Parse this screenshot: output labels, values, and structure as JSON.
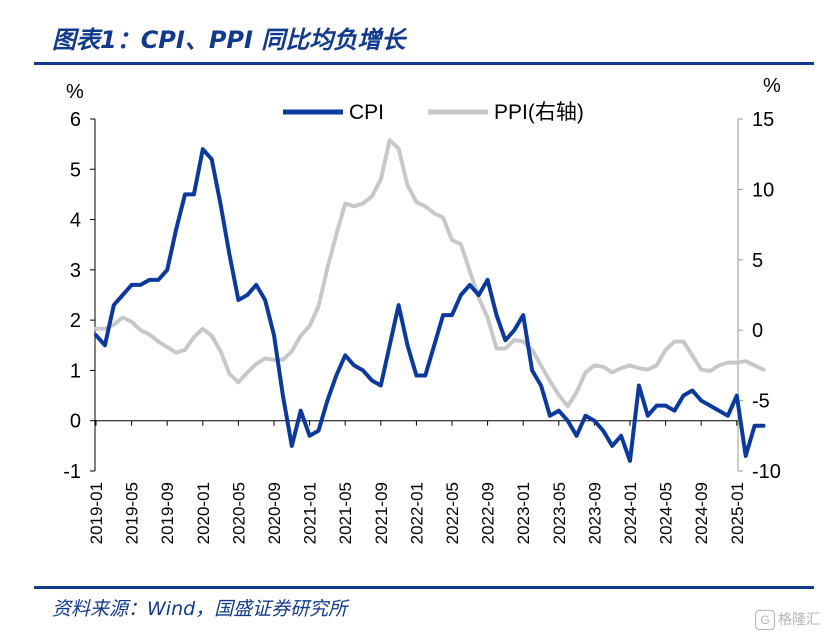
{
  "header": {
    "title": "图表1：CPI、PPI 同比均负增长"
  },
  "footer": {
    "source": "资料来源：Wind，国盛证券研究所",
    "watermark": "格隆汇",
    "watermark_mark": "G"
  },
  "colors": {
    "accent": "#123a8c",
    "cpi": "#0b3a9c",
    "ppi": "#c8c8c8"
  },
  "chart_data": {
    "type": "line",
    "title": "图表1：CPI、PPI 同比均负增长",
    "left_unit": "%",
    "right_unit": "%",
    "y_left": {
      "min": -1,
      "max": 6,
      "ticks": [
        "-1",
        "0",
        "1",
        "2",
        "3",
        "4",
        "5",
        "6"
      ]
    },
    "y_right": {
      "min": -10,
      "max": 15,
      "ticks": [
        "-10",
        "-5",
        "0",
        "5",
        "10",
        "15"
      ]
    },
    "x_tick_labels": [
      "2019-01",
      "2019-05",
      "2019-09",
      "2020-01",
      "2020-05",
      "2020-09",
      "2021-01",
      "2021-05",
      "2021-09",
      "2022-01",
      "2022-05",
      "2022-09",
      "2023-01",
      "2023-05",
      "2023-09",
      "2024-01",
      "2024-05",
      "2024-09",
      "2025-01"
    ],
    "legend": {
      "position": "top-center",
      "entries": [
        "CPI",
        "PPI(右轴)"
      ]
    },
    "grid": false,
    "series": [
      {
        "name": "CPI",
        "axis": "left",
        "values": [
          1.7,
          1.5,
          2.3,
          2.5,
          2.7,
          2.7,
          2.8,
          2.8,
          3.0,
          3.8,
          4.5,
          4.5,
          5.4,
          5.2,
          4.3,
          3.3,
          2.4,
          2.5,
          2.7,
          2.4,
          1.7,
          0.5,
          -0.5,
          0.2,
          -0.3,
          -0.2,
          0.4,
          0.9,
          1.3,
          1.1,
          1.0,
          0.8,
          0.7,
          1.5,
          2.3,
          1.5,
          0.9,
          0.9,
          1.5,
          2.1,
          2.1,
          2.5,
          2.7,
          2.5,
          2.8,
          2.1,
          1.6,
          1.8,
          2.1,
          1.0,
          0.7,
          0.1,
          0.2,
          0.0,
          -0.3,
          0.1,
          0.0,
          -0.2,
          -0.5,
          -0.3,
          -0.8,
          0.7,
          0.1,
          0.3,
          0.3,
          0.2,
          0.5,
          0.6,
          0.4,
          0.3,
          0.2,
          0.1,
          0.5,
          -0.7,
          -0.1,
          -0.1
        ],
        "first_month": "2019-01"
      },
      {
        "name": "PPI(右轴)",
        "axis": "right",
        "values": [
          0.1,
          0.1,
          0.4,
          0.9,
          0.6,
          0.0,
          -0.3,
          -0.8,
          -1.2,
          -1.6,
          -1.4,
          -0.5,
          0.1,
          -0.4,
          -1.5,
          -3.1,
          -3.7,
          -3.0,
          -2.4,
          -2.0,
          -2.1,
          -2.1,
          -1.5,
          -0.4,
          0.3,
          1.7,
          4.4,
          6.8,
          9.0,
          8.8,
          9.0,
          9.5,
          10.7,
          13.5,
          12.9,
          10.3,
          9.1,
          8.8,
          8.3,
          8.0,
          6.4,
          6.1,
          4.2,
          2.3,
          0.9,
          -1.3,
          -1.3,
          -0.7,
          -0.8,
          -1.4,
          -2.5,
          -3.6,
          -4.6,
          -5.4,
          -4.4,
          -3.0,
          -2.5,
          -2.6,
          -3.0,
          -2.7,
          -2.5,
          -2.7,
          -2.8,
          -2.5,
          -1.4,
          -0.8,
          -0.8,
          -1.8,
          -2.8,
          -2.9,
          -2.5,
          -2.3,
          -2.3,
          -2.2,
          -2.5,
          -2.8
        ]
      }
    ]
  }
}
